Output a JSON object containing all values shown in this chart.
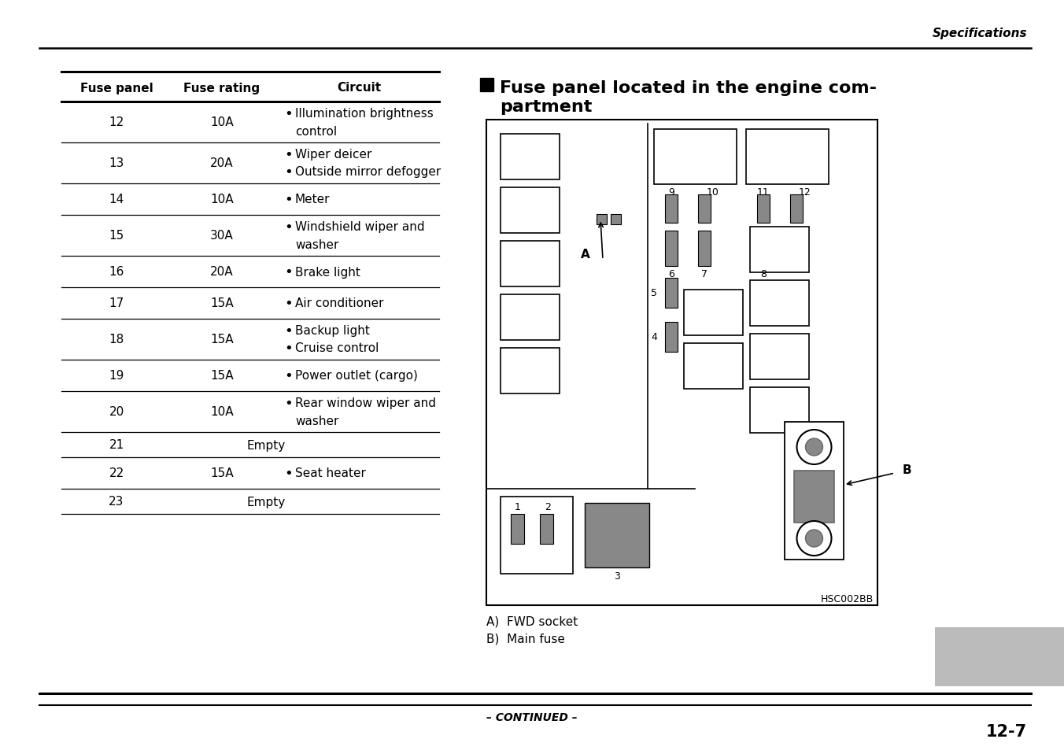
{
  "page_bg": "#ffffff",
  "header_text": "Specifications",
  "footer_text": "CONTINUED",
  "page_num": "12-7",
  "table_rows": [
    {
      "panel": "Fuse panel",
      "rating": "Fuse rating",
      "circuit": "Circuit",
      "header": true
    },
    {
      "panel": "12",
      "rating": "10A",
      "circuit": "Illumination brightness\ncontrol",
      "bullet": true,
      "two_line": true
    },
    {
      "panel": "13",
      "rating": "20A",
      "circuit": "Wiper deicer\nOutside mirror defogger",
      "bullet": true,
      "two_line": true,
      "two_bullet": true
    },
    {
      "panel": "14",
      "rating": "10A",
      "circuit": "Meter",
      "bullet": true,
      "two_line": false
    },
    {
      "panel": "15",
      "rating": "30A",
      "circuit": "Windshield wiper and\nwasher",
      "bullet": true,
      "two_line": true
    },
    {
      "panel": "16",
      "rating": "20A",
      "circuit": "Brake light",
      "bullet": true,
      "two_line": false
    },
    {
      "panel": "17",
      "rating": "15A",
      "circuit": "Air conditioner",
      "bullet": true,
      "two_line": false
    },
    {
      "panel": "18",
      "rating": "15A",
      "circuit": "Backup light\nCruise control",
      "bullet": true,
      "two_line": true,
      "two_bullet": true
    },
    {
      "panel": "19",
      "rating": "15A",
      "circuit": "Power outlet (cargo)",
      "bullet": true,
      "two_line": false
    },
    {
      "panel": "20",
      "rating": "10A",
      "circuit": "Rear window wiper and\nwasher",
      "bullet": true,
      "two_line": true
    },
    {
      "panel": "21",
      "rating": "Empty",
      "circuit": "",
      "bullet": false,
      "two_line": false
    },
    {
      "panel": "22",
      "rating": "15A",
      "circuit": "Seat heater",
      "bullet": true,
      "two_line": false
    },
    {
      "panel": "23",
      "rating": "Empty",
      "circuit": "",
      "bullet": false,
      "two_line": false
    }
  ],
  "diagram_title_line1": "Fuse panel located in the engine com-",
  "diagram_title_line2": "partment",
  "diagram_caption_a": "A)  FWD socket",
  "diagram_caption_b": "B)  Main fuse",
  "diagram_code": "HSC002BB",
  "gray": "#888888",
  "darkgray": "#666666"
}
